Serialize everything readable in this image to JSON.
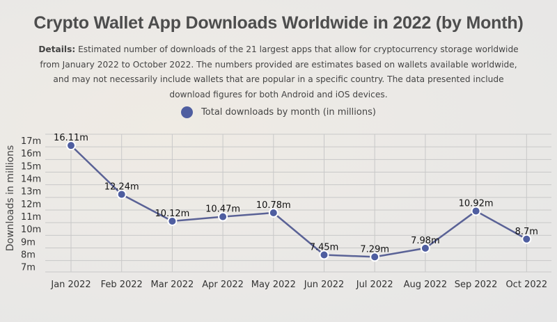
{
  "title": "Crypto Wallet App Downloads Worldwide in 2022 (by Month)",
  "details": {
    "label": "Details:",
    "text": " Estimated number of downloads of the 21 largest apps that allow for cryptocurrency storage worldwide from January 2022 to October 2022. The numbers provided are estimates based on wallets available worldwide, and may not necessarily include wallets that are popular in a specific country. The data presented include download figures for both Android and iOS devices."
  },
  "colors": {
    "series": "#5a6296",
    "marker": "#4f5ea0",
    "grid": "#c8c8c8"
  },
  "chart_data": {
    "type": "line",
    "title": "Crypto Wallet App Downloads Worldwide in 2022 (by Month)",
    "xlabel": "",
    "ylabel": "Downloads in millions",
    "categories": [
      "Jan 2022",
      "Feb 2022",
      "Mar 2022",
      "Apr 2022",
      "May 2022",
      "Jun 2022",
      "Jul 2022",
      "Aug 2022",
      "Sep 2022",
      "Oct 2022"
    ],
    "series": [
      {
        "name": "Total downloads by month (in millions)",
        "values": [
          16.11,
          12.24,
          10.12,
          10.47,
          10.78,
          7.45,
          7.29,
          7.98,
          10.92,
          8.7
        ],
        "data_labels": [
          "16.11m",
          "12.24m",
          "10.12m",
          "10.47m",
          "10.78m",
          "7.45m",
          "7.29m",
          "7.98m",
          "10.92m",
          "8.7m"
        ]
      }
    ],
    "yticks": [
      7,
      8,
      9,
      10,
      11,
      12,
      13,
      14,
      15,
      16,
      17
    ],
    "ytick_labels": [
      "7m",
      "8m",
      "9m",
      "10m",
      "11m",
      "12m",
      "13m",
      "14m",
      "15m",
      "16m",
      "17m"
    ],
    "ylim": [
      6.1,
      17
    ],
    "grid": true,
    "legend_position": "top-center"
  }
}
